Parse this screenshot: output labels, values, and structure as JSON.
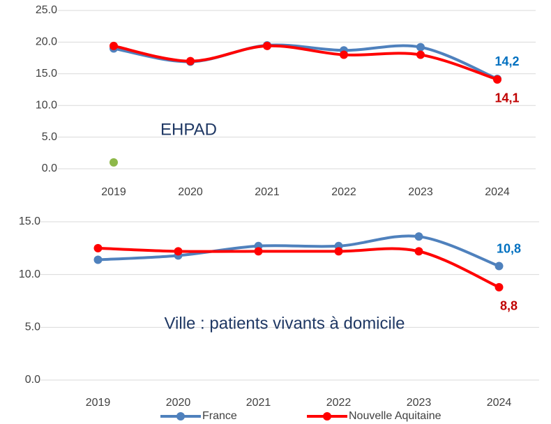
{
  "chart_data": [
    {
      "type": "line",
      "annotation": "EHPAD",
      "categories": [
        "2019",
        "2020",
        "2021",
        "2022",
        "2023",
        "2024"
      ],
      "ylim": [
        0,
        25
      ],
      "yticks": [
        {
          "value": 0,
          "label": "0.0"
        },
        {
          "value": 5,
          "label": "5.0"
        },
        {
          "value": 10,
          "label": "10.0"
        },
        {
          "value": 15,
          "label": "15.0"
        },
        {
          "value": 20,
          "label": "20.0"
        },
        {
          "value": 25,
          "label": "25.0"
        }
      ],
      "grid": true,
      "series": [
        {
          "name": "France",
          "color": "#4f81bd",
          "label_color": "#0070c0",
          "values": [
            19.0,
            16.9,
            19.5,
            18.7,
            19.2,
            14.2
          ],
          "value_labels": [
            null,
            null,
            null,
            null,
            null,
            "14,2"
          ]
        },
        {
          "name": "Nouvelle Aquitaine",
          "color": "#ff0000",
          "label_color": "#c00000",
          "values": [
            19.4,
            17.0,
            19.4,
            18.0,
            18.0,
            14.1
          ],
          "value_labels": [
            null,
            null,
            null,
            null,
            null,
            "14,1"
          ]
        },
        {
          "color": "#8db849",
          "values": [
            1,
            null,
            null,
            null,
            null,
            null
          ]
        }
      ]
    },
    {
      "type": "line",
      "annotation": "Ville : patients vivants à domicile",
      "categories": [
        "2019",
        "2020",
        "2021",
        "2022",
        "2023",
        "2024"
      ],
      "ylim": [
        0,
        15
      ],
      "yticks": [
        {
          "value": 0,
          "label": "0.0"
        },
        {
          "value": 5,
          "label": "5.0"
        },
        {
          "value": 10,
          "label": "10.0"
        },
        {
          "value": 15,
          "label": "15.0"
        }
      ],
      "grid": true,
      "legend": "bottom",
      "series": [
        {
          "name": "France",
          "color": "#4f81bd",
          "label_color": "#0070c0",
          "values": [
            11.4,
            11.8,
            12.7,
            12.7,
            13.6,
            10.8
          ],
          "value_labels": [
            null,
            null,
            null,
            null,
            null,
            "10,8"
          ]
        },
        {
          "name": "Nouvelle Aquitaine",
          "color": "#ff0000",
          "label_color": "#c00000",
          "values": [
            12.5,
            12.2,
            12.2,
            12.2,
            12.2,
            8.8
          ],
          "value_labels": [
            null,
            null,
            null,
            null,
            null,
            "8,8"
          ]
        }
      ]
    }
  ]
}
